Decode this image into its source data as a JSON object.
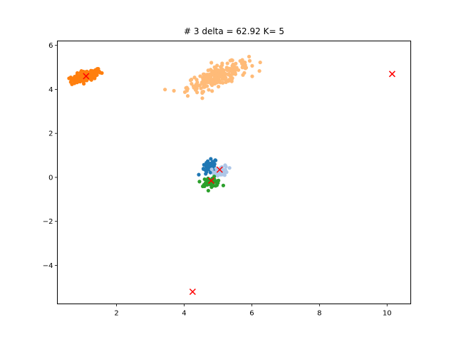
{
  "chart_data": {
    "type": "scatter",
    "title": "# 3 delta = 62.92 K= 5",
    "xlabel": "",
    "ylabel": "",
    "xlim": [
      0.25,
      10.7
    ],
    "ylim": [
      -5.75,
      6.2
    ],
    "xticks": [
      2,
      4,
      6,
      8,
      10
    ],
    "yticks": [
      -4,
      -2,
      0,
      2,
      4,
      6
    ],
    "xtick_labels": [
      "2",
      "4",
      "6",
      "8",
      "10"
    ],
    "ytick_labels": [
      "−4",
      "−2",
      "0",
      "2",
      "4",
      "6"
    ],
    "grid": false,
    "clusters": [
      {
        "color": "#ff7f0e",
        "center": [
          1.1,
          4.6
        ],
        "spread": [
          0.22,
          0.12
        ],
        "tilt": 0.45,
        "count": 140
      },
      {
        "color": "#ffbb78",
        "center": [
          5.0,
          4.6
        ],
        "spread": [
          0.45,
          0.22
        ],
        "tilt": 0.55,
        "count": 260
      },
      {
        "color": "#1f77b4",
        "center": [
          4.75,
          0.45
        ],
        "spread": [
          0.12,
          0.15
        ],
        "tilt": 0.6,
        "count": 40
      },
      {
        "color": "#aec7e8",
        "center": [
          5.1,
          0.3
        ],
        "spread": [
          0.1,
          0.12
        ],
        "tilt": 0.2,
        "count": 50
      },
      {
        "color": "#2ca02c",
        "center": [
          4.8,
          -0.2
        ],
        "spread": [
          0.15,
          0.1
        ],
        "tilt": 0.0,
        "count": 45
      }
    ],
    "centroids": {
      "color": "#ff0000",
      "marker": "x",
      "points": [
        {
          "x": 1.1,
          "y": 4.6
        },
        {
          "x": 5.05,
          "y": 0.35
        },
        {
          "x": 4.8,
          "y": -0.15
        },
        {
          "x": 10.15,
          "y": 4.7
        },
        {
          "x": 4.25,
          "y": -5.2
        }
      ]
    }
  }
}
